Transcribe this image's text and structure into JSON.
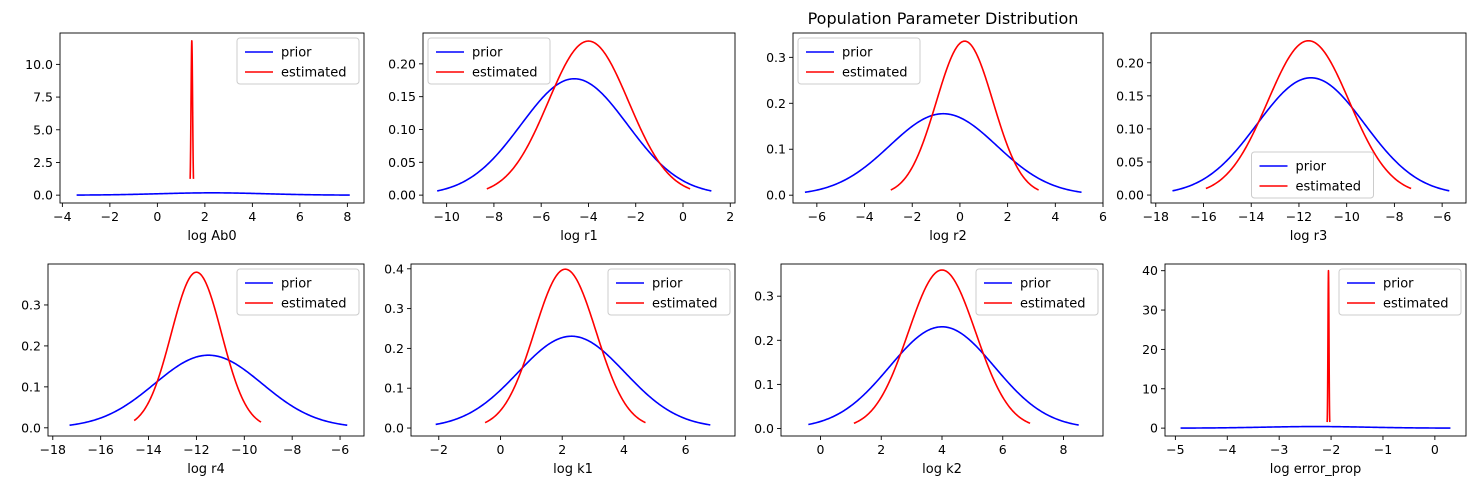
{
  "figure": {
    "title": "Population Parameter Distribution"
  },
  "colors": {
    "prior": "#0000ff",
    "estimated": "#ff0000"
  },
  "chart_data": [
    {
      "type": "line",
      "xlabel": "log Ab0",
      "xlim": [
        -4.1,
        8.7
      ],
      "ylim": [
        -0.6,
        12.4
      ],
      "xticks": [
        -4,
        -2,
        0,
        2,
        4,
        6,
        8
      ],
      "yticks": [
        0.0,
        2.5,
        5.0,
        7.5,
        10.0
      ],
      "ytick_decimals": 1,
      "legend_position": "upper-right",
      "series": [
        {
          "name": "prior",
          "color": "#0000ff",
          "curve": {
            "mu": 2.3,
            "sigma": 2.25,
            "x_min": -3.4,
            "x_max": 8.1
          }
        },
        {
          "name": "estimated",
          "color": "#ff0000",
          "curve": {
            "mu": 1.45,
            "sigma": 0.033,
            "x_min": 1.38,
            "x_max": 1.52,
            "peak": 11.8
          }
        }
      ]
    },
    {
      "type": "line",
      "xlabel": "log r1",
      "xlim": [
        -11,
        2.2
      ],
      "ylim": [
        -0.012,
        0.247
      ],
      "xticks": [
        -10,
        -8,
        -6,
        -4,
        -2,
        0,
        2
      ],
      "yticks": [
        0.0,
        0.05,
        0.1,
        0.15,
        0.2
      ],
      "ytick_decimals": 2,
      "legend_position": "upper-left",
      "series": [
        {
          "name": "prior",
          "color": "#0000ff",
          "curve": {
            "mu": -4.6,
            "sigma": 2.25,
            "x_min": -10.4,
            "x_max": 1.2
          }
        },
        {
          "name": "estimated",
          "color": "#ff0000",
          "curve": {
            "mu": -4.0,
            "sigma": 1.7,
            "x_min": -8.3,
            "x_max": 0.3
          }
        }
      ]
    },
    {
      "type": "line",
      "xlabel": "log r2",
      "xlim": [
        -7,
        6
      ],
      "ylim": [
        -0.017,
        0.353
      ],
      "xticks": [
        -6,
        -4,
        -2,
        0,
        2,
        4,
        6
      ],
      "yticks": [
        0.0,
        0.1,
        0.2,
        0.3
      ],
      "ytick_decimals": 1,
      "legend_position": "upper-left",
      "series": [
        {
          "name": "prior",
          "color": "#0000ff",
          "curve": {
            "mu": -0.7,
            "sigma": 2.25,
            "x_min": -6.5,
            "x_max": 5.1
          }
        },
        {
          "name": "estimated",
          "color": "#ff0000",
          "curve": {
            "mu": 0.2,
            "sigma": 1.19,
            "x_min": -2.9,
            "x_max": 3.3
          }
        }
      ]
    },
    {
      "type": "line",
      "xlabel": "log r3",
      "xlim": [
        -18.2,
        -5
      ],
      "ylim": [
        -0.012,
        0.245
      ],
      "xticks": [
        -18,
        -16,
        -14,
        -12,
        -10,
        -8,
        -6
      ],
      "yticks": [
        0.0,
        0.05,
        0.1,
        0.15,
        0.2
      ],
      "ytick_decimals": 2,
      "legend_position": "lower-center",
      "series": [
        {
          "name": "prior",
          "color": "#0000ff",
          "curve": {
            "mu": -11.5,
            "sigma": 2.25,
            "x_min": -17.3,
            "x_max": -5.7
          }
        },
        {
          "name": "estimated",
          "color": "#ff0000",
          "curve": {
            "mu": -11.6,
            "sigma": 1.71,
            "x_min": -15.9,
            "x_max": -7.3
          }
        }
      ]
    },
    {
      "type": "line",
      "xlabel": "log r4",
      "xlim": [
        -18.2,
        -5
      ],
      "ylim": [
        -0.02,
        0.4
      ],
      "xticks": [
        -18,
        -16,
        -14,
        -12,
        -10,
        -8,
        -6
      ],
      "yticks": [
        0.0,
        0.1,
        0.2,
        0.3
      ],
      "ytick_decimals": 1,
      "legend_position": "upper-right",
      "series": [
        {
          "name": "prior",
          "color": "#0000ff",
          "curve": {
            "mu": -11.5,
            "sigma": 2.25,
            "x_min": -17.3,
            "x_max": -5.7
          }
        },
        {
          "name": "estimated",
          "color": "#ff0000",
          "curve": {
            "mu": -12.0,
            "sigma": 1.05,
            "x_min": -14.6,
            "x_max": -9.3
          }
        }
      ]
    },
    {
      "type": "line",
      "xlabel": "log k1",
      "xlim": [
        -2.9,
        7.6
      ],
      "ylim": [
        -0.02,
        0.412
      ],
      "xticks": [
        -2,
        0,
        2,
        4,
        6
      ],
      "yticks": [
        0.0,
        0.1,
        0.2,
        0.3,
        0.4
      ],
      "ytick_decimals": 1,
      "legend_position": "upper-right",
      "series": [
        {
          "name": "prior",
          "color": "#0000ff",
          "curve": {
            "mu": 2.3,
            "sigma": 1.73,
            "x_min": -2.1,
            "x_max": 6.8
          }
        },
        {
          "name": "estimated",
          "color": "#ff0000",
          "curve": {
            "mu": 2.1,
            "sigma": 1.0,
            "x_min": -0.5,
            "x_max": 4.7
          }
        }
      ]
    },
    {
      "type": "line",
      "xlabel": "log k2",
      "xlim": [
        -1.3,
        9.3
      ],
      "ylim": [
        -0.017,
        0.373
      ],
      "xticks": [
        0,
        2,
        4,
        6,
        8
      ],
      "yticks": [
        0.0,
        0.1,
        0.2,
        0.3
      ],
      "ytick_decimals": 1,
      "legend_position": "upper-right",
      "series": [
        {
          "name": "prior",
          "color": "#0000ff",
          "curve": {
            "mu": 4.0,
            "sigma": 1.73,
            "x_min": -0.4,
            "x_max": 8.5
          }
        },
        {
          "name": "estimated",
          "color": "#ff0000",
          "curve": {
            "mu": 4.0,
            "sigma": 1.11,
            "x_min": 1.1,
            "x_max": 6.9
          }
        }
      ]
    },
    {
      "type": "line",
      "xlabel": "log error_prop",
      "xlim": [
        -5.2,
        0.6
      ],
      "ylim": [
        -2,
        41.7
      ],
      "xticks": [
        -5,
        -4,
        -3,
        -2,
        -1,
        0
      ],
      "yticks": [
        0,
        10,
        20,
        30,
        40
      ],
      "ytick_decimals": 0,
      "legend_position": "upper-right",
      "series": [
        {
          "name": "prior",
          "color": "#0000ff",
          "curve": {
            "mu": -2.3,
            "sigma": 1.0,
            "x_min": -4.9,
            "x_max": 0.3
          }
        },
        {
          "name": "estimated",
          "color": "#ff0000",
          "curve": {
            "mu": -2.05,
            "sigma": 0.0098,
            "x_min": -2.075,
            "x_max": -2.025,
            "peak": 40.0
          }
        }
      ]
    }
  ]
}
